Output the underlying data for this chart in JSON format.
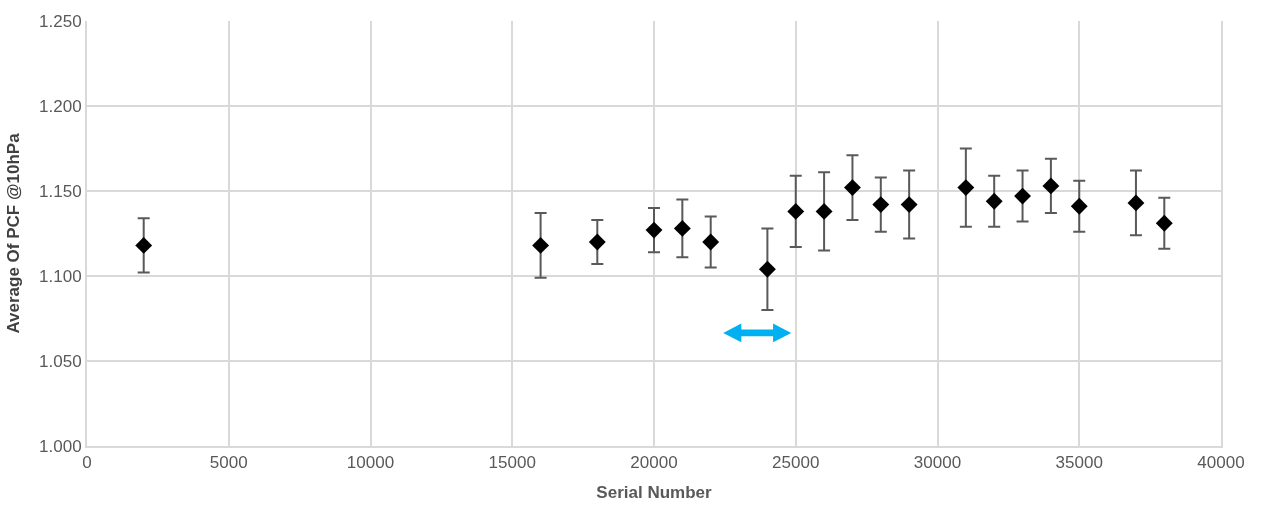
{
  "chart_data": {
    "type": "scatter",
    "xlabel": "Serial Number",
    "ylabel": "Average Of PCF @10hPa",
    "x": [
      2000,
      16000,
      18000,
      20000,
      21000,
      22000,
      24000,
      25000,
      26000,
      27000,
      28000,
      29000,
      31000,
      32000,
      33000,
      34000,
      35000,
      37000,
      38000
    ],
    "values": [
      1.118,
      1.118,
      1.12,
      1.127,
      1.128,
      1.12,
      1.104,
      1.138,
      1.138,
      1.152,
      1.142,
      1.142,
      1.152,
      1.144,
      1.147,
      1.153,
      1.141,
      1.143,
      1.131
    ],
    "errors": [
      0.016,
      0.019,
      0.013,
      0.013,
      0.017,
      0.015,
      0.024,
      0.021,
      0.023,
      0.019,
      0.016,
      0.02,
      0.023,
      0.015,
      0.015,
      0.016,
      0.015,
      0.019,
      0.015
    ],
    "color": "#000000",
    "marker": "diamond",
    "xlim": [
      0,
      40000
    ],
    "xticks": [
      0,
      5000,
      10000,
      15000,
      20000,
      25000,
      30000,
      35000,
      40000
    ],
    "ylim": [
      1.0,
      1.25
    ],
    "yticks": [
      {
        "value": 1.0,
        "label": "1.000"
      },
      {
        "value": 1.05,
        "label": "1.050"
      },
      {
        "value": 1.1,
        "label": "1.100"
      },
      {
        "value": 1.15,
        "label": "1.150"
      },
      {
        "value": 1.2,
        "label": "1.200"
      },
      {
        "value": 1.25,
        "label": "1.250"
      }
    ],
    "grid": true,
    "legend": false
  }
}
